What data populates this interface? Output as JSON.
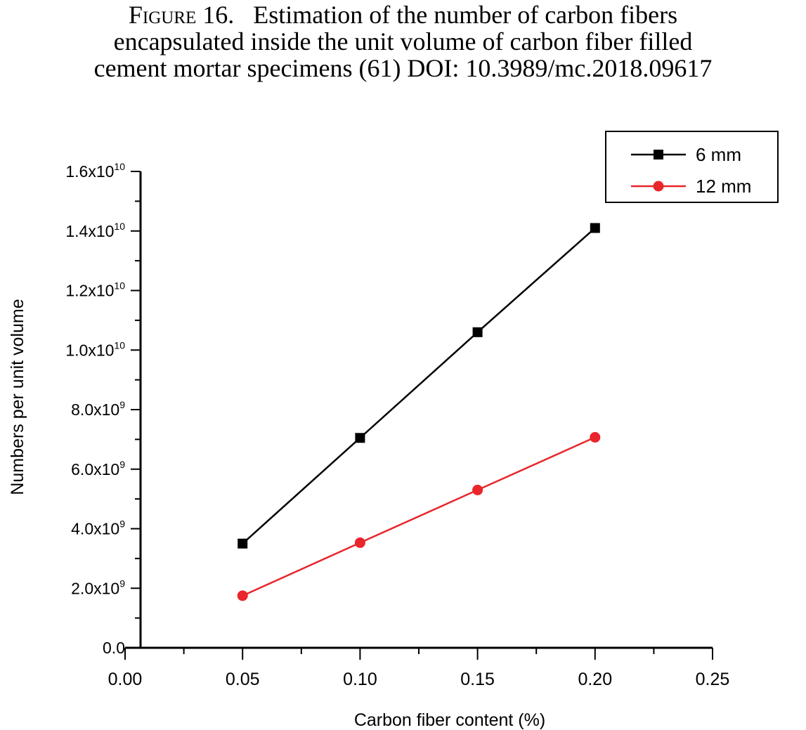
{
  "caption": {
    "label": "Figure 16.",
    "line1": "Estimation of the number of carbon fibers",
    "line2": "encapsulated inside the unit volume of carbon fiber filled",
    "line3": "cement mortar specimens (61) DOI: 10.3989/mc.2018.09617"
  },
  "chart_data": {
    "type": "line",
    "xlabel": "Carbon fiber content (%)",
    "ylabel": "Numbers per unit volume",
    "xlim": [
      0.0,
      0.25
    ],
    "ylim": [
      0,
      16000000000
    ],
    "x_ticks": [
      {
        "value": 0.0,
        "label": "0.00"
      },
      {
        "value": 0.05,
        "label": "0.05"
      },
      {
        "value": 0.1,
        "label": "0.10"
      },
      {
        "value": 0.15,
        "label": "0.15"
      },
      {
        "value": 0.2,
        "label": "0.20"
      },
      {
        "value": 0.25,
        "label": "0.25"
      }
    ],
    "y_ticks": [
      {
        "value": 0,
        "mantissa": "0.0",
        "exp": ""
      },
      {
        "value": 2000000000,
        "mantissa": "2.0x10",
        "exp": "9"
      },
      {
        "value": 4000000000,
        "mantissa": "4.0x10",
        "exp": "9"
      },
      {
        "value": 6000000000,
        "mantissa": "6.0x10",
        "exp": "9"
      },
      {
        "value": 8000000000,
        "mantissa": "8.0x10",
        "exp": "9"
      },
      {
        "value": 10000000000,
        "mantissa": "1.0x10",
        "exp": "10"
      },
      {
        "value": 12000000000,
        "mantissa": "1.2x10",
        "exp": "10"
      },
      {
        "value": 14000000000,
        "mantissa": "1.4x10",
        "exp": "10"
      },
      {
        "value": 16000000000,
        "mantissa": "1.6x10",
        "exp": "10"
      }
    ],
    "legend_position": "top-right",
    "grid": false,
    "series": [
      {
        "name": "6 mm",
        "color": "#000000",
        "marker": "square",
        "x": [
          0.05,
          0.1,
          0.15,
          0.2
        ],
        "y": [
          3500000000,
          7050000000,
          10600000000,
          14100000000
        ]
      },
      {
        "name": "12 mm",
        "color": "#e8262b",
        "marker": "circle",
        "x": [
          0.05,
          0.1,
          0.15,
          0.2
        ],
        "y": [
          1750000000,
          3530000000,
          5300000000,
          7070000000
        ]
      }
    ]
  }
}
